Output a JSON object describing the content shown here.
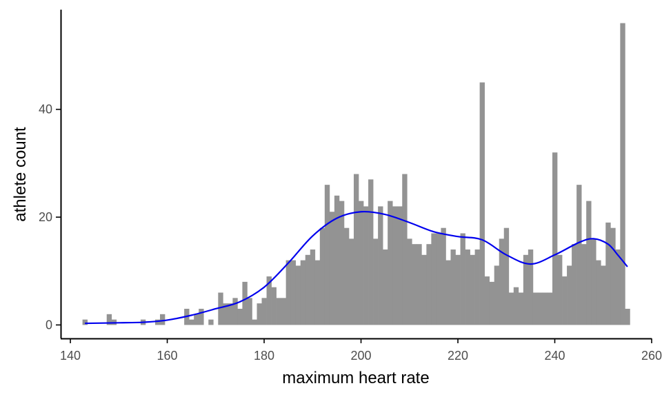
{
  "chart_data": {
    "type": "bar",
    "subtype": "histogram-with-density-curve",
    "xlabel": "maximum heart rate",
    "ylabel": "athlete count",
    "x_ticks": [
      140,
      160,
      180,
      200,
      220,
      240,
      260
    ],
    "y_ticks": [
      0,
      20,
      40
    ],
    "xlim": [
      138,
      260
    ],
    "ylim": [
      -2.5,
      58.5
    ],
    "bin_width": 1,
    "bar_color": "#939393",
    "curve_color": "#0000ee",
    "grid": false,
    "bins": [
      {
        "x": 143,
        "count": 1
      },
      {
        "x": 148,
        "count": 2
      },
      {
        "x": 149,
        "count": 1
      },
      {
        "x": 155,
        "count": 1
      },
      {
        "x": 158,
        "count": 1
      },
      {
        "x": 159,
        "count": 2
      },
      {
        "x": 164,
        "count": 3
      },
      {
        "x": 165,
        "count": 1
      },
      {
        "x": 166,
        "count": 2
      },
      {
        "x": 167,
        "count": 3
      },
      {
        "x": 169,
        "count": 1
      },
      {
        "x": 171,
        "count": 6
      },
      {
        "x": 172,
        "count": 4
      },
      {
        "x": 173,
        "count": 4
      },
      {
        "x": 174,
        "count": 5
      },
      {
        "x": 175,
        "count": 3
      },
      {
        "x": 176,
        "count": 8
      },
      {
        "x": 177,
        "count": 5
      },
      {
        "x": 178,
        "count": 1
      },
      {
        "x": 179,
        "count": 4
      },
      {
        "x": 180,
        "count": 5
      },
      {
        "x": 181,
        "count": 9
      },
      {
        "x": 182,
        "count": 7
      },
      {
        "x": 183,
        "count": 5
      },
      {
        "x": 184,
        "count": 5
      },
      {
        "x": 185,
        "count": 12
      },
      {
        "x": 186,
        "count": 12
      },
      {
        "x": 187,
        "count": 11
      },
      {
        "x": 188,
        "count": 12
      },
      {
        "x": 189,
        "count": 13
      },
      {
        "x": 190,
        "count": 14
      },
      {
        "x": 191,
        "count": 12
      },
      {
        "x": 192,
        "count": 18
      },
      {
        "x": 193,
        "count": 26
      },
      {
        "x": 194,
        "count": 21
      },
      {
        "x": 195,
        "count": 24
      },
      {
        "x": 196,
        "count": 23
      },
      {
        "x": 197,
        "count": 18
      },
      {
        "x": 198,
        "count": 16
      },
      {
        "x": 199,
        "count": 28
      },
      {
        "x": 200,
        "count": 23
      },
      {
        "x": 201,
        "count": 22
      },
      {
        "x": 202,
        "count": 27
      },
      {
        "x": 203,
        "count": 16
      },
      {
        "x": 204,
        "count": 22
      },
      {
        "x": 205,
        "count": 14
      },
      {
        "x": 206,
        "count": 23
      },
      {
        "x": 207,
        "count": 22
      },
      {
        "x": 208,
        "count": 22
      },
      {
        "x": 209,
        "count": 28
      },
      {
        "x": 210,
        "count": 16
      },
      {
        "x": 211,
        "count": 15
      },
      {
        "x": 212,
        "count": 15
      },
      {
        "x": 213,
        "count": 13
      },
      {
        "x": 214,
        "count": 15
      },
      {
        "x": 215,
        "count": 17
      },
      {
        "x": 216,
        "count": 17
      },
      {
        "x": 217,
        "count": 18
      },
      {
        "x": 218,
        "count": 12
      },
      {
        "x": 219,
        "count": 14
      },
      {
        "x": 220,
        "count": 13
      },
      {
        "x": 221,
        "count": 17
      },
      {
        "x": 222,
        "count": 14
      },
      {
        "x": 223,
        "count": 13
      },
      {
        "x": 224,
        "count": 14
      },
      {
        "x": 225,
        "count": 45
      },
      {
        "x": 226,
        "count": 9
      },
      {
        "x": 227,
        "count": 8
      },
      {
        "x": 228,
        "count": 11
      },
      {
        "x": 229,
        "count": 16
      },
      {
        "x": 230,
        "count": 18
      },
      {
        "x": 231,
        "count": 6
      },
      {
        "x": 232,
        "count": 7
      },
      {
        "x": 233,
        "count": 6
      },
      {
        "x": 234,
        "count": 13
      },
      {
        "x": 235,
        "count": 14
      },
      {
        "x": 236,
        "count": 6
      },
      {
        "x": 237,
        "count": 6
      },
      {
        "x": 238,
        "count": 6
      },
      {
        "x": 239,
        "count": 6
      },
      {
        "x": 240,
        "count": 32
      },
      {
        "x": 241,
        "count": 13
      },
      {
        "x": 242,
        "count": 9
      },
      {
        "x": 243,
        "count": 11
      },
      {
        "x": 244,
        "count": 15
      },
      {
        "x": 245,
        "count": 26
      },
      {
        "x": 246,
        "count": 15
      },
      {
        "x": 247,
        "count": 23
      },
      {
        "x": 248,
        "count": 16
      },
      {
        "x": 249,
        "count": 12
      },
      {
        "x": 250,
        "count": 11
      },
      {
        "x": 251,
        "count": 19
      },
      {
        "x": 252,
        "count": 18
      },
      {
        "x": 253,
        "count": 14
      },
      {
        "x": 254,
        "count": 56
      },
      {
        "x": 255,
        "count": 3
      }
    ],
    "density_curve": [
      {
        "x": 143,
        "y": 0.3
      },
      {
        "x": 150,
        "y": 0.4
      },
      {
        "x": 155,
        "y": 0.5
      },
      {
        "x": 160,
        "y": 0.9
      },
      {
        "x": 165,
        "y": 1.8
      },
      {
        "x": 170,
        "y": 3.0
      },
      {
        "x": 175,
        "y": 4.3
      },
      {
        "x": 180,
        "y": 7.0
      },
      {
        "x": 185,
        "y": 11.5
      },
      {
        "x": 190,
        "y": 16.5
      },
      {
        "x": 195,
        "y": 19.8
      },
      {
        "x": 200,
        "y": 21.0
      },
      {
        "x": 205,
        "y": 20.5
      },
      {
        "x": 210,
        "y": 19.0
      },
      {
        "x": 215,
        "y": 17.3
      },
      {
        "x": 220,
        "y": 16.4
      },
      {
        "x": 225,
        "y": 15.8
      },
      {
        "x": 230,
        "y": 13.0
      },
      {
        "x": 235,
        "y": 11.3
      },
      {
        "x": 240,
        "y": 13.0
      },
      {
        "x": 245,
        "y": 15.3
      },
      {
        "x": 248,
        "y": 16.0
      },
      {
        "x": 251,
        "y": 15.0
      },
      {
        "x": 253,
        "y": 13.0
      },
      {
        "x": 255,
        "y": 10.8
      }
    ]
  }
}
